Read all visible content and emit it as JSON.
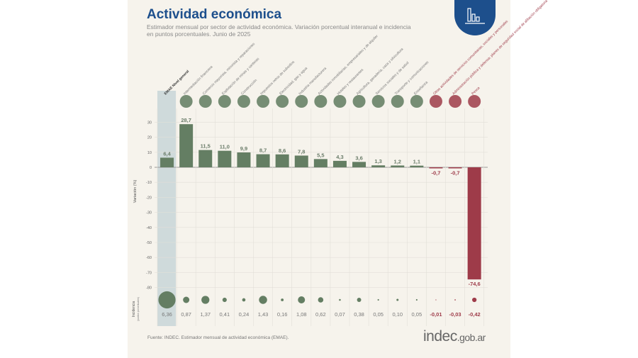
{
  "header": {
    "title": "Actividad económica",
    "subtitle": "Estimador mensual por sector de actividad económica. Variación porcentual interanual e incidencia en puntos porcentuales. Junio de 2025"
  },
  "footer": {
    "source": "Fuente: INDEC. Estimador mensual de actividad económica (EMAE).",
    "logo_main": "indec",
    "logo_suffix": ".gob.ar"
  },
  "colors": {
    "positive": "#647e63",
    "negative": "#9e3b49",
    "highlight": "#cfdadb",
    "title": "#1d4f8c"
  },
  "chart_data": {
    "type": "bar",
    "ylabel": "Variación (%)",
    "ylabel2": "Incidencia",
    "ylabel2_sub": "(puntos porcentuales)",
    "ylim": [
      -80,
      30
    ],
    "yticks": [
      30,
      20,
      10,
      0,
      -10,
      -20,
      -30,
      -40,
      -50,
      -60,
      -70,
      -80
    ],
    "grid": true,
    "categories": [
      "EMAE Nivel general",
      "Intermediación financiera",
      "Comercio mayorista, minorista y reparaciones",
      "Explotación de minas y canteras",
      "Construcción",
      "Impuestos netos de subsidios",
      "Electricidad, gas y agua",
      "Industria manufacturera",
      "Actividades inmobiliarias, empresariales y de alquiler",
      "Hoteles y restaurantes",
      "Agricultura, ganadería, caza y silvicultura",
      "Servicios sociales y de salud",
      "Transporte y comunicaciones",
      "Enseñanza",
      "Otras actividades de servicios comunitarias, sociales y personales",
      "Administración pública y defensa; planes de seguridad social de afiliación obligatoria",
      "Pesca"
    ],
    "values": [
      6.4,
      28.7,
      11.5,
      11.0,
      9.9,
      8.7,
      8.6,
      7.8,
      5.5,
      4.3,
      3.6,
      1.3,
      1.2,
      1.1,
      -0.7,
      -0.7,
      -74.6
    ],
    "value_labels": [
      "6,4",
      "28,7",
      "11,5",
      "11,0",
      "9,9",
      "8,7",
      "8,6",
      "7,8",
      "5,5",
      "4,3",
      "3,6",
      "1,3",
      "1,2",
      "1,1",
      "-0,7",
      "-0,7",
      "-74,6"
    ],
    "incidence": [
      6.36,
      0.87,
      1.37,
      0.41,
      0.24,
      1.43,
      0.16,
      1.08,
      0.62,
      0.07,
      0.38,
      0.05,
      0.1,
      0.05,
      -0.01,
      -0.03,
      -0.42
    ],
    "incidence_labels": [
      "6,36",
      "0,87",
      "1,37",
      "0,41",
      "0,24",
      "1,43",
      "0,16",
      "1,08",
      "0,62",
      "0,07",
      "0,38",
      "0,05",
      "0,10",
      "0,05",
      "-0,01",
      "-0,03",
      "-0,42"
    ]
  }
}
